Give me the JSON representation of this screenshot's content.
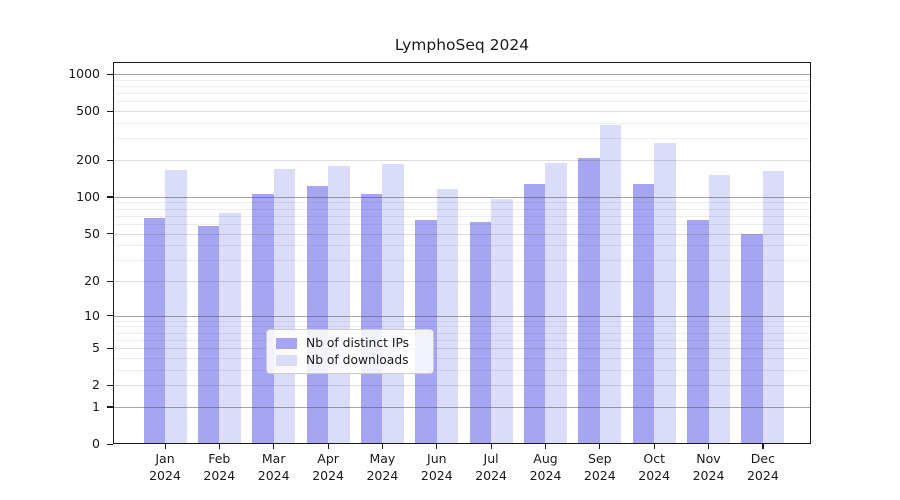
{
  "chart_data": {
    "type": "bar",
    "title": "LymphoSeq 2024",
    "categories": [
      "Jan 2024",
      "Feb 2024",
      "Mar 2024",
      "Apr 2024",
      "May 2024",
      "Jun 2024",
      "Jul 2024",
      "Aug 2024",
      "Sep 2024",
      "Oct 2024",
      "Nov 2024",
      "Dec 2024"
    ],
    "series": [
      {
        "name": "Nb of distinct IPs",
        "color": "#a5a5f1",
        "values": [
          67,
          58,
          106,
          122,
          105,
          65,
          62,
          127,
          208,
          127,
          65,
          50
        ]
      },
      {
        "name": "Nb of downloads",
        "color": "#dbdbfa",
        "values": [
          167,
          74,
          170,
          179,
          187,
          117,
          96,
          188,
          385,
          273,
          152,
          162
        ]
      }
    ],
    "xlabel": "",
    "ylabel": "",
    "yscale": "log1p",
    "ylim": [
      0,
      1250
    ],
    "yticks": [
      0,
      1,
      2,
      5,
      10,
      20,
      50,
      100,
      200,
      500,
      1000
    ],
    "power10_ticks": [
      1,
      10,
      100,
      1000
    ],
    "minor_gridlines": [
      3,
      4,
      6,
      7,
      8,
      9,
      30,
      40,
      60,
      70,
      80,
      90,
      300,
      400,
      600,
      700,
      800,
      900
    ],
    "grid": true,
    "legend_position": "lower-center",
    "colors": {
      "axis": "#1a1a1a",
      "text": "#1a1a1a",
      "grid_strong": "#a9a9a9",
      "grid_mid": "#d9d9d9",
      "grid_faint": "#eeeeee",
      "legend_border": "#cccccc"
    }
  }
}
